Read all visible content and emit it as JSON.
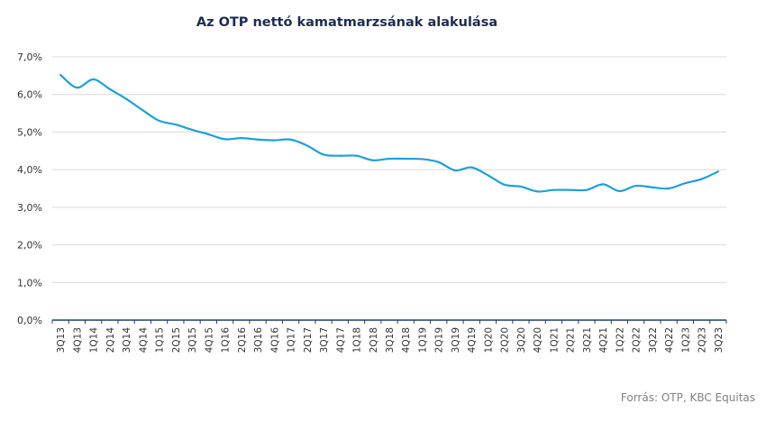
{
  "title": "Az OTP nettó kamatmarzsának alakulása",
  "source": "Forrás: OTP, KBC Equitas",
  "colors": {
    "line": "#1fa0d6",
    "grid": "#d9d9d9",
    "axis": "#1d3f73",
    "text": "#333333"
  },
  "chart_data": {
    "type": "line",
    "title": "Az OTP nettó kamatmarzsának alakulása",
    "xlabel": "",
    "ylabel": "",
    "ylim": [
      0,
      7
    ],
    "y_ticks": [
      "0,0%",
      "1,0%",
      "2,0%",
      "3,0%",
      "4,0%",
      "5,0%",
      "6,0%",
      "7,0%"
    ],
    "grid": true,
    "legend": "none",
    "categories": [
      "3Q13",
      "4Q13",
      "1Q14",
      "2Q14",
      "3Q14",
      "4Q14",
      "1Q15",
      "2Q15",
      "3Q15",
      "4Q15",
      "1Q16",
      "2Q16",
      "3Q16",
      "4Q16",
      "1Q17",
      "2Q17",
      "3Q17",
      "4Q17",
      "1Q18",
      "2Q18",
      "3Q18",
      "4Q18",
      "1Q19",
      "2Q19",
      "3Q19",
      "4Q19",
      "1Q20",
      "2Q20",
      "3Q20",
      "4Q20",
      "1Q21",
      "2Q21",
      "3Q21",
      "4Q21",
      "1Q22",
      "2Q22",
      "3Q22",
      "4Q22",
      "1Q23",
      "2Q23",
      "3Q23"
    ],
    "values": [
      6.52,
      6.18,
      6.4,
      6.14,
      5.88,
      5.58,
      5.3,
      5.2,
      5.06,
      4.94,
      4.81,
      4.84,
      4.8,
      4.78,
      4.8,
      4.64,
      4.4,
      4.37,
      4.37,
      4.25,
      4.29,
      4.29,
      4.28,
      4.2,
      3.98,
      4.06,
      3.85,
      3.6,
      3.55,
      3.42,
      3.46,
      3.46,
      3.46,
      3.61,
      3.43,
      3.57,
      3.53,
      3.5,
      3.64,
      3.75,
      3.95
    ]
  }
}
